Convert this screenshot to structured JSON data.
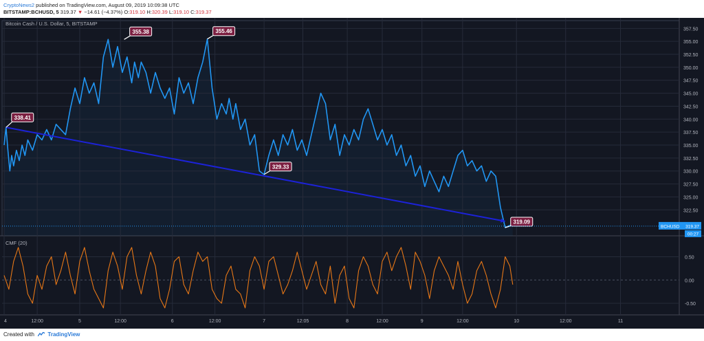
{
  "header": {
    "author": "CryptoNews2",
    "published_text": "published on TradingView.com, August 09, 2019 10:09:38 UTC",
    "symbol": "BITSTAMP:BCHUSD, 5",
    "last": "319.37",
    "direction_arrow": "▼",
    "change": "−14.61 (−4.37%)",
    "o_label": "O:",
    "o_value": "319.10",
    "h_label": "H:",
    "h_value": "320.39",
    "l_label": "L:",
    "l_value": "319.10",
    "c_label": "C:",
    "c_value": "319.37"
  },
  "footer": {
    "created_with": "Created with",
    "brand": "TradingView"
  },
  "colors": {
    "background": "#131722",
    "grid": "#262b3a",
    "price_line": "#2196f3",
    "trend_line": "#1c22d8",
    "cmf_line": "#e87817",
    "callout_bg": "#7b1e40",
    "price_tag": "#2196f3",
    "axis_text": "#b2b5be"
  },
  "chart_data": [
    {
      "type": "line",
      "title": "Bitcoin Cash / U.S. Dollar, 5, BITSTAMP",
      "x_ticks": [
        "4",
        "12:00",
        "5",
        "12:00",
        "6",
        "12:00",
        "7",
        "12:05",
        "8",
        "12:00",
        "9",
        "12:00",
        "10",
        "12:00",
        "11"
      ],
      "y_ticks": [
        "357.50",
        "355.00",
        "352.50",
        "350.00",
        "347.50",
        "345.00",
        "342.50",
        "340.00",
        "337.50",
        "335.00",
        "332.50",
        "330.00",
        "327.50",
        "325.00",
        "322.50"
      ],
      "ylim": [
        317.5,
        359
      ],
      "series": [
        {
          "x": [
            0,
            0.02,
            0.04,
            0.06,
            0.08,
            0.1,
            0.13,
            0.16,
            0.19,
            0.22,
            0.25,
            0.3,
            0.35,
            0.4,
            0.45,
            0.5,
            0.55,
            0.6,
            0.65,
            0.7,
            0.75,
            0.8,
            0.85,
            0.9,
            0.95,
            1.0,
            1.05,
            1.1,
            1.15,
            1.2,
            1.25,
            1.3,
            1.35,
            1.38,
            1.42,
            1.45,
            1.5,
            1.55,
            1.6,
            1.65,
            1.7,
            1.75,
            1.8,
            1.85,
            1.9,
            1.95,
            2.0,
            2.05,
            2.1,
            2.15,
            2.2,
            2.25,
            2.3,
            2.35,
            2.38,
            2.42,
            2.45,
            2.5,
            2.55,
            2.6,
            2.65,
            2.7,
            2.75,
            2.8,
            2.85,
            2.9,
            2.95,
            3.0,
            3.05,
            3.1,
            3.15,
            3.2,
            3.25,
            3.3,
            3.35,
            3.4,
            3.45,
            3.5,
            3.55,
            3.6,
            3.65,
            3.7,
            3.75,
            3.8,
            3.85,
            3.9,
            3.95,
            4.0,
            4.05,
            4.1,
            4.15,
            4.2,
            4.25,
            4.3,
            4.35,
            4.4,
            4.45,
            4.5,
            4.55,
            4.6,
            4.65,
            4.7,
            4.75,
            4.8,
            4.85,
            4.9,
            4.95,
            5.0,
            5.05,
            5.1,
            5.15,
            5.2,
            5.25,
            5.3,
            5.35,
            5.38
          ],
          "values": [
            335,
            338.41,
            334,
            330,
            333,
            331,
            334,
            332,
            335,
            333,
            336,
            334,
            337,
            336,
            338,
            336,
            339,
            338,
            337,
            342,
            346,
            343,
            348,
            345,
            347,
            343,
            352,
            355.38,
            350,
            354,
            349,
            352,
            347,
            351,
            348,
            351,
            349,
            345,
            349,
            346,
            344,
            346,
            341,
            348,
            345,
            347,
            343,
            348,
            351,
            355.46,
            346,
            340,
            343,
            341,
            344,
            340,
            343,
            338,
            340,
            335,
            337,
            330,
            329.33,
            333,
            336,
            333,
            337,
            335,
            338,
            334,
            336,
            333,
            337,
            341,
            345,
            343,
            336,
            339,
            333,
            337,
            335,
            338,
            336,
            340,
            342,
            339,
            336,
            338,
            335,
            337,
            333,
            335,
            331,
            333,
            329,
            331,
            327,
            330,
            328,
            326,
            329,
            327,
            330,
            333,
            334,
            331,
            332,
            330,
            331,
            328,
            330,
            329,
            323,
            319.09,
            319.5,
            319.37
          ]
        }
      ],
      "callouts": [
        {
          "label": "338.41",
          "x": 0.02,
          "value": 338.41
        },
        {
          "label": "355.38",
          "x": 1.27,
          "value": 355.38
        },
        {
          "label": "355.46",
          "x": 2.15,
          "value": 355.46
        },
        {
          "label": "329.33",
          "x": 2.75,
          "value": 329.33
        },
        {
          "label": "319.09",
          "x": 5.3,
          "value": 319.09
        }
      ],
      "trend_line": {
        "x": [
          0.02,
          5.3
        ],
        "values": [
          338.41,
          320.3
        ]
      },
      "price_tag": {
        "label": "BCHUSD",
        "value": "319.37",
        "countdown": "00:27"
      }
    },
    {
      "type": "line",
      "title": "CMF (20)",
      "y_ticks": [
        "0.50",
        "0.00",
        "-0.50"
      ],
      "ylim": [
        -0.75,
        0.95
      ],
      "series": [
        {
          "x": [
            0,
            0.05,
            0.1,
            0.15,
            0.2,
            0.25,
            0.3,
            0.35,
            0.4,
            0.45,
            0.5,
            0.55,
            0.6,
            0.65,
            0.7,
            0.75,
            0.8,
            0.85,
            0.9,
            0.95,
            1.0,
            1.05,
            1.1,
            1.15,
            1.2,
            1.25,
            1.3,
            1.35,
            1.4,
            1.45,
            1.5,
            1.55,
            1.6,
            1.65,
            1.7,
            1.75,
            1.8,
            1.85,
            1.9,
            1.95,
            2.0,
            2.05,
            2.1,
            2.15,
            2.2,
            2.25,
            2.3,
            2.35,
            2.4,
            2.45,
            2.5,
            2.55,
            2.6,
            2.65,
            2.7,
            2.75,
            2.8,
            2.85,
            2.9,
            2.95,
            3.0,
            3.05,
            3.1,
            3.15,
            3.2,
            3.25,
            3.3,
            3.35,
            3.4,
            3.45,
            3.5,
            3.55,
            3.6,
            3.65,
            3.7,
            3.75,
            3.8,
            3.85,
            3.9,
            3.95,
            4.0,
            4.05,
            4.1,
            4.15,
            4.2,
            4.25,
            4.3,
            4.35,
            4.4,
            4.45,
            4.5,
            4.55,
            4.6,
            4.65,
            4.7,
            4.75,
            4.8,
            4.85,
            4.9,
            4.95,
            5.0,
            5.05,
            5.1,
            5.15,
            5.2,
            5.25,
            5.3,
            5.35,
            5.38
          ],
          "values": [
            0.1,
            -0.2,
            0.4,
            0.7,
            0.3,
            -0.3,
            -0.5,
            0.1,
            -0.2,
            0.3,
            0.5,
            -0.1,
            0.2,
            0.6,
            0.1,
            -0.3,
            0.4,
            0.7,
            0.2,
            -0.2,
            -0.4,
            -0.6,
            0.2,
            0.6,
            0.3,
            -0.2,
            0.5,
            0.7,
            0.1,
            -0.3,
            0.2,
            0.6,
            0.3,
            -0.4,
            -0.6,
            -0.2,
            0.4,
            0.5,
            -0.1,
            -0.3,
            0.2,
            0.6,
            0.4,
            0.5,
            -0.2,
            -0.4,
            -0.5,
            0.1,
            0.3,
            -0.2,
            -0.3,
            -0.6,
            0.2,
            0.5,
            0.3,
            -0.2,
            0.4,
            0.5,
            0.1,
            -0.3,
            -0.1,
            0.2,
            0.6,
            0.2,
            -0.2,
            0.1,
            0.4,
            -0.1,
            -0.3,
            0.3,
            -0.5,
            0.1,
            0.3,
            -0.4,
            -0.6,
            0.2,
            0.5,
            0.3,
            -0.1,
            -0.3,
            0.4,
            0.6,
            0.2,
            0.5,
            0.7,
            0.3,
            -0.2,
            0.6,
            0.4,
            0.1,
            -0.4,
            0.2,
            0.5,
            0.3,
            0.1,
            -0.2,
            0.4,
            -0.1,
            -0.5,
            -0.3,
            0.2,
            0.4,
            0.1,
            -0.3,
            -0.6,
            -0.2,
            0.5,
            0.3,
            -0.1
          ]
        }
      ]
    }
  ]
}
